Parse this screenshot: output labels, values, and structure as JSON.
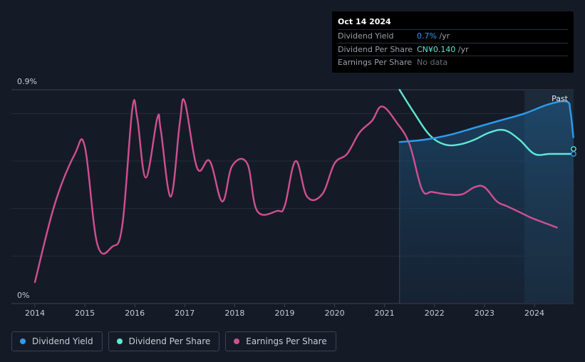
{
  "chart_data": {
    "type": "line",
    "title": "",
    "ylabel": "",
    "xlabel": "",
    "ylim": [
      0,
      0.9
    ],
    "y_tick_labels": [
      "0.9%",
      "0%"
    ],
    "x_tick_labels": [
      "2014",
      "2015",
      "2016",
      "2017",
      "2018",
      "2019",
      "2020",
      "2021",
      "2022",
      "2023",
      "2024"
    ],
    "past_label": "Past",
    "series": [
      {
        "name": "Earnings Per Share",
        "color": "#d0508f",
        "x": [
          2014.0,
          2014.4,
          2014.8,
          2015.0,
          2015.25,
          2015.55,
          2015.75,
          2015.95,
          2016.05,
          2016.22,
          2016.45,
          2016.52,
          2016.72,
          2016.9,
          2017.0,
          2017.25,
          2017.5,
          2017.75,
          2017.95,
          2018.25,
          2018.45,
          2018.85,
          2019.0,
          2019.22,
          2019.45,
          2019.75,
          2020.0,
          2020.25,
          2020.5,
          2020.75,
          2020.95,
          2021.25,
          2021.5,
          2021.75,
          2021.95,
          2022.25,
          2022.55,
          2022.8,
          2023.0,
          2023.25,
          2023.45,
          2023.75,
          2023.95,
          2024.2,
          2024.45
        ],
        "values": [
          0.09,
          0.42,
          0.63,
          0.66,
          0.25,
          0.24,
          0.33,
          0.82,
          0.78,
          0.53,
          0.78,
          0.73,
          0.45,
          0.76,
          0.85,
          0.57,
          0.6,
          0.43,
          0.58,
          0.59,
          0.39,
          0.39,
          0.41,
          0.6,
          0.45,
          0.46,
          0.59,
          0.63,
          0.72,
          0.77,
          0.83,
          0.76,
          0.67,
          0.48,
          0.47,
          0.46,
          0.46,
          0.49,
          0.49,
          0.43,
          0.41,
          0.38,
          0.36,
          0.34,
          0.32
        ]
      },
      {
        "name": "Dividend Per Share",
        "color": "#5ee8d6",
        "x": [
          2021.3,
          2021.6,
          2021.9,
          2022.2,
          2022.5,
          2022.8,
          2023.1,
          2023.4,
          2023.7,
          2024.0,
          2024.3,
          2024.6,
          2024.78
        ],
        "values": [
          0.9,
          0.8,
          0.71,
          0.67,
          0.67,
          0.69,
          0.72,
          0.73,
          0.69,
          0.63,
          0.63,
          0.63,
          0.63
        ]
      },
      {
        "name": "Dividend Yield",
        "color": "#2e9cf0",
        "x": [
          2021.3,
          2021.8,
          2022.3,
          2022.8,
          2023.3,
          2023.8,
          2024.3,
          2024.65,
          2024.72,
          2024.78
        ],
        "values": [
          0.68,
          0.69,
          0.71,
          0.74,
          0.77,
          0.8,
          0.84,
          0.85,
          0.81,
          0.7
        ]
      }
    ]
  },
  "tooltip": {
    "date": "Oct 14 2024",
    "rows": [
      {
        "label": "Dividend Yield",
        "value": "0.7%",
        "unit": " /yr"
      },
      {
        "label": "Dividend Per Share",
        "value": "CN¥0.140",
        "unit": " /yr"
      },
      {
        "label": "Earnings Per Share",
        "value": "No data",
        "unit": ""
      }
    ]
  },
  "legend": [
    {
      "label": "Dividend Yield",
      "color": "#2e9cf0"
    },
    {
      "label": "Dividend Per Share",
      "color": "#5ee8d6"
    },
    {
      "label": "Earnings Per Share",
      "color": "#d0508f"
    }
  ]
}
